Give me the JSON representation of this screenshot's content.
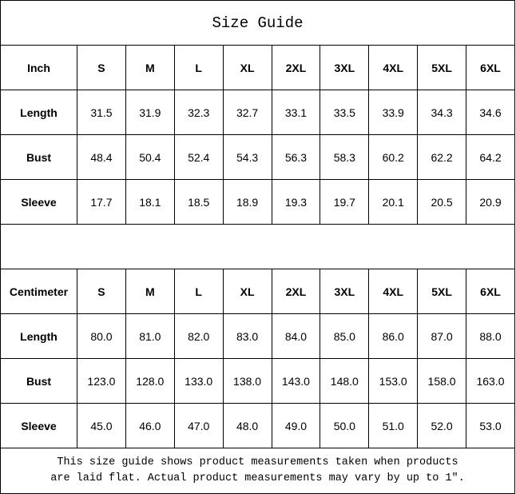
{
  "title": "Size Guide",
  "sizes": [
    "S",
    "M",
    "L",
    "XL",
    "2XL",
    "3XL",
    "4XL",
    "5XL",
    "6XL"
  ],
  "inch": {
    "unit_label": "Inch",
    "rows": [
      {
        "label": "Length",
        "values": [
          "31.5",
          "31.9",
          "32.3",
          "32.7",
          "33.1",
          "33.5",
          "33.9",
          "34.3",
          "34.6"
        ]
      },
      {
        "label": "Bust",
        "values": [
          "48.4",
          "50.4",
          "52.4",
          "54.3",
          "56.3",
          "58.3",
          "60.2",
          "62.2",
          "64.2"
        ]
      },
      {
        "label": "Sleeve",
        "values": [
          "17.7",
          "18.1",
          "18.5",
          "18.9",
          "19.3",
          "19.7",
          "20.1",
          "20.5",
          "20.9"
        ]
      }
    ]
  },
  "cm": {
    "unit_label": "Centimeter",
    "rows": [
      {
        "label": "Length",
        "values": [
          "80.0",
          "81.0",
          "82.0",
          "83.0",
          "84.0",
          "85.0",
          "86.0",
          "87.0",
          "88.0"
        ]
      },
      {
        "label": "Bust",
        "values": [
          "123.0",
          "128.0",
          "133.0",
          "138.0",
          "143.0",
          "148.0",
          "153.0",
          "158.0",
          "163.0"
        ]
      },
      {
        "label": "Sleeve",
        "values": [
          "45.0",
          "46.0",
          "47.0",
          "48.0",
          "49.0",
          "50.0",
          "51.0",
          "52.0",
          "53.0"
        ]
      }
    ]
  },
  "note": {
    "line1": "This size guide shows product measurements taken when products",
    "line2": "are laid flat. Actual product measurements may vary by up to 1″."
  }
}
